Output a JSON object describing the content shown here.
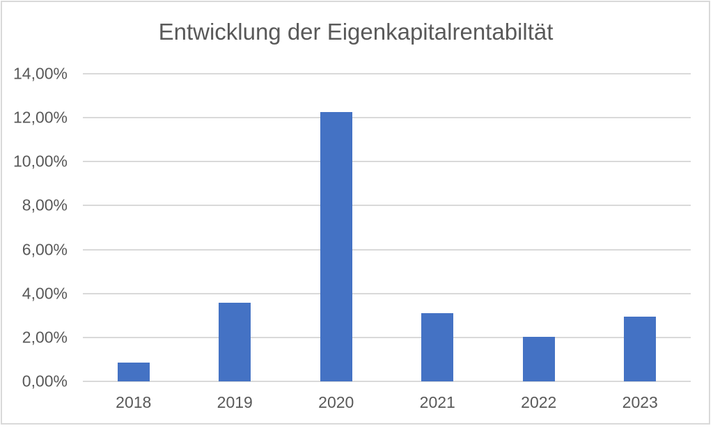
{
  "chart_data": {
    "type": "bar",
    "title": "Entwicklung der Eigenkapitalrentabiltät",
    "categories": [
      "2018",
      "2019",
      "2020",
      "2021",
      "2022",
      "2023"
    ],
    "values": [
      0.85,
      3.57,
      12.25,
      3.12,
      2.03,
      2.94
    ],
    "values_unit": "%",
    "y_ticks": [
      {
        "label": "0,00%",
        "value": 0
      },
      {
        "label": "2,00%",
        "value": 2
      },
      {
        "label": "4,00%",
        "value": 4
      },
      {
        "label": "6,00%",
        "value": 6
      },
      {
        "label": "8,00%",
        "value": 8
      },
      {
        "label": "10,00%",
        "value": 10
      },
      {
        "label": "12,00%",
        "value": 12
      },
      {
        "label": "14,00%",
        "value": 14
      }
    ],
    "ylim": [
      0,
      14
    ],
    "xlabel": "",
    "ylabel": "",
    "grid": true,
    "legend": false,
    "colors": {
      "bar": "#4472C4",
      "gridline": "#D9D9D9",
      "axis_text": "#595959",
      "title_text": "#595959",
      "chart_border": "#D9D9D9",
      "background": "#FFFFFF"
    }
  }
}
